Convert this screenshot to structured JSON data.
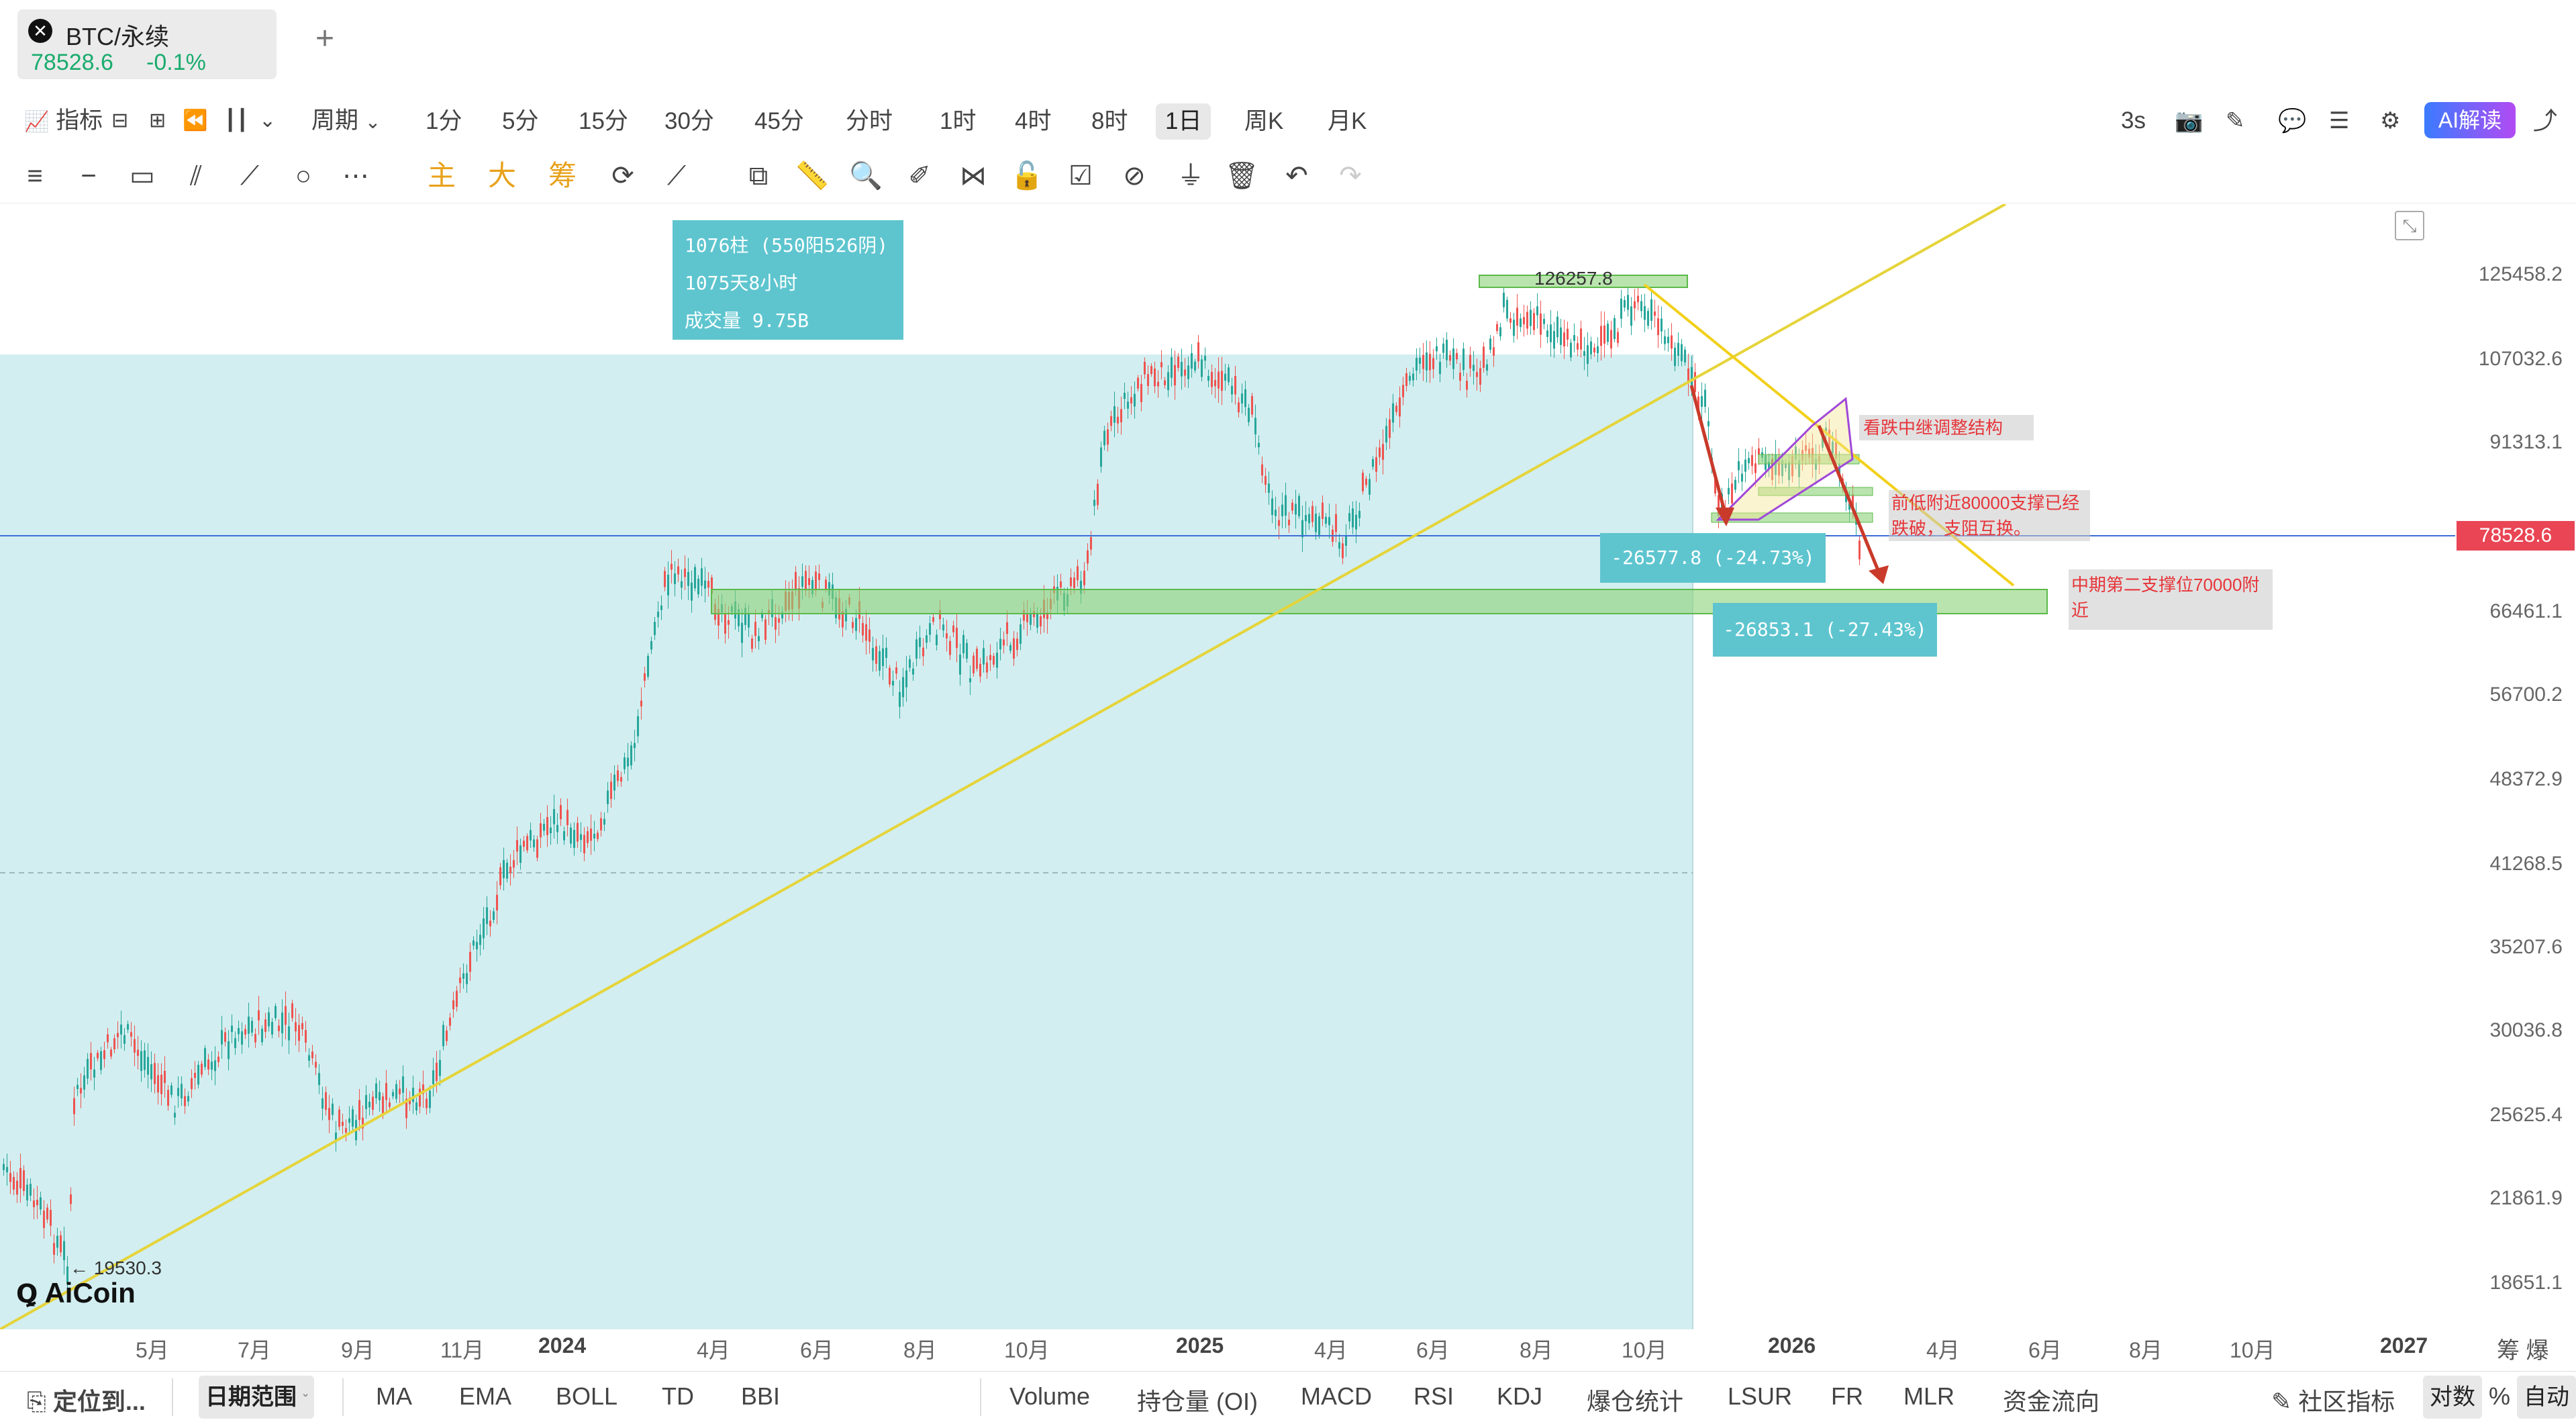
{
  "symbol_tab": {
    "icon": "✕",
    "name": "BTC/永续",
    "price": "78528.6",
    "change": "-0.1%",
    "add": "+"
  },
  "toolbar": {
    "indicator_label": "指标",
    "period_label": "周期",
    "periods": [
      "1分",
      "5分",
      "15分",
      "30分",
      "45分",
      "分时",
      "1时",
      "4时",
      "8时",
      "1日",
      "周K",
      "月K"
    ],
    "active_period": "1日",
    "refresh": "3s",
    "ai_label": "AI解读"
  },
  "draw_tools": {
    "main": "主",
    "big": "大",
    "chip": "筹"
  },
  "chart": {
    "range_info": [
      "1076柱 (550阳526阴)",
      "1075天8小时",
      "成交量 9.75B"
    ],
    "high_label": "126257.8",
    "low_label": "← 19530.3",
    "measure1": "-26577.8 (-24.73%)",
    "measure2": "-26853.1 (-27.43%)",
    "note1": "看跌中继调整结构",
    "note2": "前低附近80000支撑已经跌破，支阻互换。",
    "note3": "中期第二支撑位70000附近",
    "logo": "AiCoin",
    "current_price": "78528.6",
    "price_ticks": [
      "125458.2",
      "107032.6",
      "91313.1",
      "66461.1",
      "56700.2",
      "48372.9",
      "41268.5",
      "35207.6",
      "30036.8",
      "25625.4",
      "21861.9",
      "18651.1"
    ],
    "time_ticks": [
      {
        "label": "5月",
        "bold": false
      },
      {
        "label": "7月",
        "bold": false
      },
      {
        "label": "9月",
        "bold": false
      },
      {
        "label": "11月",
        "bold": false
      },
      {
        "label": "2024",
        "bold": true
      },
      {
        "label": "4月",
        "bold": false
      },
      {
        "label": "6月",
        "bold": false
      },
      {
        "label": "8月",
        "bold": false
      },
      {
        "label": "10月",
        "bold": false
      },
      {
        "label": "2025",
        "bold": true
      },
      {
        "label": "4月",
        "bold": false
      },
      {
        "label": "6月",
        "bold": false
      },
      {
        "label": "8月",
        "bold": false
      },
      {
        "label": "10月",
        "bold": false
      },
      {
        "label": "2026",
        "bold": true
      },
      {
        "label": "4月",
        "bold": false
      },
      {
        "label": "6月",
        "bold": false
      },
      {
        "label": "8月",
        "bold": false
      },
      {
        "label": "10月",
        "bold": false
      },
      {
        "label": "2027",
        "bold": true
      }
    ],
    "axis_right": "筹 爆"
  },
  "bottombar": {
    "locate": "定位到...",
    "date_range": "日期范围",
    "indicators_main": [
      "MA",
      "EMA",
      "BOLL",
      "TD",
      "BBI"
    ],
    "indicators_sub": [
      "Volume",
      "持仓量 (OI)",
      "MACD",
      "RSI",
      "KDJ",
      "爆仓统计",
      "LSUR",
      "FR",
      "MLR",
      "资金流向"
    ],
    "community": "社区指标",
    "log": "对数",
    "percent": "%",
    "auto": "自动"
  },
  "colors": {
    "up": "#26a69a",
    "down": "#ef5350",
    "highlight": "#d2eef0",
    "trend": "#f2d019",
    "accent_red": "#e94554"
  }
}
